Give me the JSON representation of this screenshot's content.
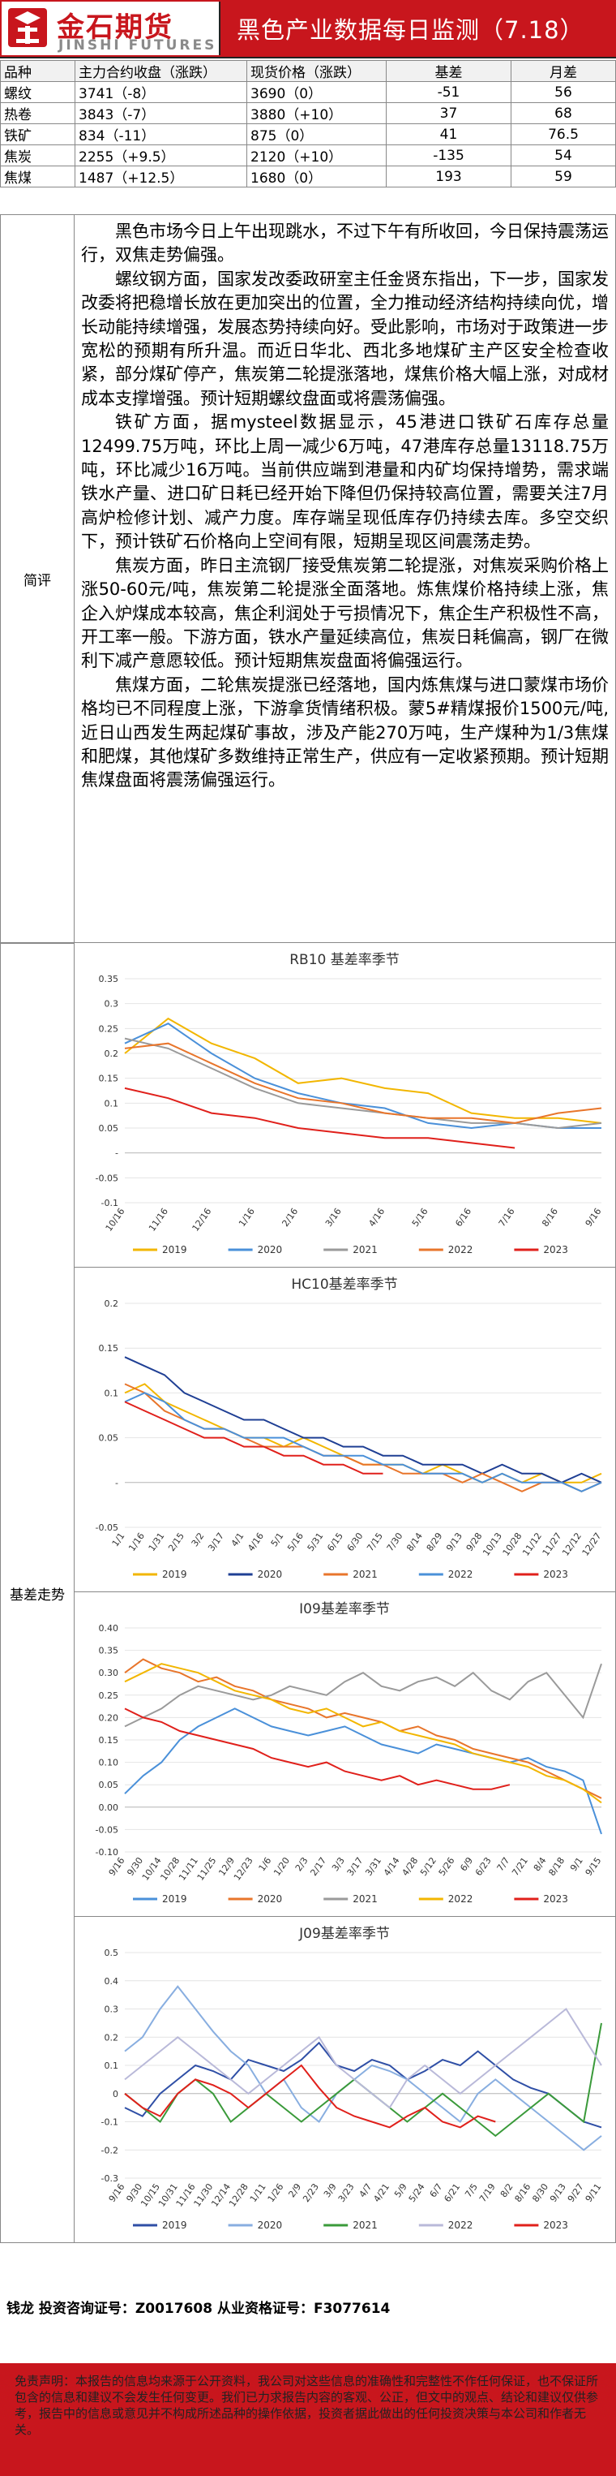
{
  "header": {
    "logo_cn": "金石期货",
    "logo_en": "JINSHI FUTURES",
    "title": "黑色产业数据每日监测（7.18）"
  },
  "table": {
    "headers": [
      "品种",
      "主力合约收盘（涨跌）",
      "现货价格（涨跌）",
      "基差",
      "月差"
    ],
    "rows": [
      [
        "螺纹",
        "3741（-8）",
        "3690（0）",
        "-51",
        "56"
      ],
      [
        "热卷",
        "3843（-7）",
        "3880（+10）",
        "37",
        "68"
      ],
      [
        "铁矿",
        "834（-11）",
        "875（0）",
        "41",
        "76.5"
      ],
      [
        "焦炭",
        "2255（+9.5）",
        "2120（+10）",
        "-135",
        "54"
      ],
      [
        "焦煤",
        "1487（+12.5）",
        "1680（0）",
        "193",
        "59"
      ]
    ]
  },
  "comment": {
    "label": "简评",
    "paragraphs": [
      "黑色市场今日上午出现跳水，不过下午有所收回，今日保持震荡运行，双焦走势偏强。",
      "螺纹钢方面，国家发改委政研室主任金贤东指出，下一步，国家发改委将把稳增长放在更加突出的位置，全力推动经济结构持续向优，增长动能持续增强，发展态势持续向好。受此影响，市场对于政策进一步宽松的预期有所升温。而近日华北、西北多地煤矿主产区安全检查收紧，部分煤矿停产，焦炭第二轮提涨落地，煤焦价格大幅上涨，对成材成本支撑增强。预计短期螺纹盘面或将震荡偏强。",
      "铁矿方面，据mysteel数据显示，45港进口铁矿石库存总量12499.75万吨，环比上周一减少6万吨，47港库存总量13118.75万吨，环比减少16万吨。当前供应端到港量和内矿均保持增势，需求端铁水产量、进口矿日耗已经开始下降但仍保持较高位置，需要关注7月高炉检修计划、减产力度。库存端呈现低库存仍持续去库。多空交织下，预计铁矿石价格向上空间有限，短期呈现区间震荡走势。",
      "焦炭方面，昨日主流钢厂接受焦炭第二轮提涨，对焦炭采购价格上涨50-60元/吨，焦炭第二轮提涨全面落地。炼焦煤价格持续上涨，焦企入炉煤成本较高，焦企利润处于亏损情况下，焦企生产积极性不高，开工率一般。下游方面，铁水产量延续高位，焦炭日耗偏高，钢厂在微利下减产意愿较低。预计短期焦炭盘面将偏强运行。",
      "焦煤方面，二轮焦炭提涨已经落地，国内炼焦煤与进口蒙煤市场价格均已不同程度上涨，下游拿货情绪积极。蒙5#精煤报价1500元/吨,近日山西发生两起煤矿事故，涉及产能270万吨，生产煤种为1/3焦煤和肥煤，其他煤矿多数维持正常生产，供应有一定收紧预期。预计短期焦煤盘面将震荡偏强运行。"
    ]
  },
  "basis_label": "基差走势",
  "chart_data": [
    {
      "type": "line",
      "title": "RB10 基差率季节",
      "ylim": [
        -0.1,
        0.35
      ],
      "yticks": [
        0.35,
        0.3,
        0.25,
        0.2,
        0.15,
        0.1,
        0.05,
        0,
        -0.05,
        -0.1
      ],
      "ytick_labels": [
        "0.35",
        "0.3",
        "0.25",
        "0.2",
        "0.15",
        "0.1",
        "0.05",
        "-",
        "-0.05",
        "-0.1"
      ],
      "categories": [
        "10/16",
        "11/16",
        "12/16",
        "1/16",
        "2/16",
        "3/16",
        "4/16",
        "5/16",
        "6/16",
        "7/16",
        "8/16",
        "9/16"
      ],
      "series": [
        {
          "name": "2019",
          "color": "#f2b600",
          "values": [
            0.2,
            0.27,
            0.22,
            0.19,
            0.14,
            0.15,
            0.13,
            0.12,
            0.08,
            0.07,
            0.07,
            0.06
          ]
        },
        {
          "name": "2020",
          "color": "#4a90d9",
          "values": [
            0.22,
            0.26,
            0.2,
            0.15,
            0.12,
            0.1,
            0.09,
            0.06,
            0.05,
            0.06,
            0.05,
            0.05
          ]
        },
        {
          "name": "2021",
          "color": "#9a9a9a",
          "values": [
            0.23,
            0.21,
            0.17,
            0.13,
            0.1,
            0.09,
            0.08,
            0.07,
            0.06,
            0.06,
            0.05,
            0.06
          ]
        },
        {
          "name": "2022",
          "color": "#e8752b",
          "values": [
            0.21,
            0.22,
            0.18,
            0.14,
            0.11,
            0.1,
            0.08,
            0.07,
            0.07,
            0.06,
            0.08,
            0.09
          ]
        },
        {
          "name": "2023",
          "color": "#e0201b",
          "values": [
            0.13,
            0.11,
            0.08,
            0.07,
            0.05,
            0.04,
            0.03,
            0.03,
            0.02,
            0.01,
            null,
            null
          ]
        }
      ]
    },
    {
      "type": "line",
      "title": "HC10基差率季节",
      "ylim": [
        -0.05,
        0.2
      ],
      "yticks": [
        0.2,
        0.15,
        0.1,
        0.05,
        0,
        -0.05
      ],
      "ytick_labels": [
        "0.2",
        "0.15",
        "0.1",
        "0.05",
        "-",
        "-0.05"
      ],
      "categories": [
        "1/1",
        "1/16",
        "1/31",
        "2/15",
        "3/2",
        "3/17",
        "4/1",
        "4/16",
        "5/1",
        "5/16",
        "5/31",
        "6/15",
        "6/30",
        "7/15",
        "7/30",
        "8/14",
        "8/29",
        "9/13",
        "9/28",
        "10/13",
        "10/28",
        "11/12",
        "11/27",
        "12/12",
        "12/27"
      ],
      "series": [
        {
          "name": "2019",
          "color": "#f2b600",
          "values": [
            0.1,
            0.11,
            0.09,
            0.08,
            0.07,
            0.06,
            0.05,
            0.05,
            0.04,
            0.05,
            0.04,
            0.03,
            0.02,
            0.02,
            0.02,
            0.01,
            0.02,
            0.01,
            0.0,
            0.01,
            0.0,
            0.01,
            0.0,
            0.0,
            0.01
          ]
        },
        {
          "name": "2020",
          "color": "#1f3f94",
          "values": [
            0.14,
            0.13,
            0.12,
            0.1,
            0.09,
            0.08,
            0.07,
            0.07,
            0.06,
            0.05,
            0.05,
            0.04,
            0.04,
            0.03,
            0.03,
            0.02,
            0.02,
            0.02,
            0.01,
            0.02,
            0.01,
            0.01,
            0.0,
            0.01,
            0.0
          ]
        },
        {
          "name": "2021",
          "color": "#e8752b",
          "values": [
            0.11,
            0.1,
            0.08,
            0.07,
            0.06,
            0.06,
            0.05,
            0.04,
            0.04,
            0.04,
            0.03,
            0.03,
            0.02,
            0.02,
            0.01,
            0.01,
            0.01,
            0.0,
            0.01,
            0.0,
            -0.01,
            0.0,
            0.0,
            -0.01,
            0.0
          ]
        },
        {
          "name": "2022",
          "color": "#4a90d9",
          "values": [
            0.09,
            0.1,
            0.09,
            0.07,
            0.06,
            0.06,
            0.05,
            0.05,
            0.05,
            0.04,
            0.03,
            0.03,
            0.03,
            0.02,
            0.02,
            0.01,
            0.01,
            0.01,
            0.0,
            0.01,
            0.0,
            0.0,
            0.0,
            -0.01,
            0.0
          ]
        },
        {
          "name": "2023",
          "color": "#e0201b",
          "values": [
            0.09,
            0.08,
            0.07,
            0.06,
            0.05,
            0.05,
            0.04,
            0.04,
            0.03,
            0.03,
            0.02,
            0.02,
            0.01,
            0.01,
            null,
            null,
            null,
            null,
            null,
            null,
            null,
            null,
            null,
            null,
            null
          ]
        }
      ]
    },
    {
      "type": "line",
      "title": "I09基差率季节",
      "ylim": [
        -0.1,
        0.4
      ],
      "yticks": [
        0.4,
        0.35,
        0.3,
        0.25,
        0.2,
        0.15,
        0.1,
        0.05,
        0.0,
        -0.05,
        -0.1
      ],
      "ytick_labels": [
        "0.40",
        "0.35",
        "0.30",
        "0.25",
        "0.20",
        "0.15",
        "0.10",
        "0.05",
        "0.00",
        "-0.05",
        "-0.10"
      ],
      "categories": [
        "9/16",
        "9/30",
        "10/14",
        "10/28",
        "11/11",
        "11/25",
        "12/9",
        "12/23",
        "1/6",
        "1/20",
        "2/3",
        "2/17",
        "3/3",
        "3/17",
        "3/31",
        "4/14",
        "4/28",
        "5/12",
        "5/26",
        "6/9",
        "6/23",
        "7/7",
        "7/21",
        "8/4",
        "8/18",
        "9/1",
        "9/15"
      ],
      "series": [
        {
          "name": "2019",
          "color": "#4a90d9",
          "values": [
            0.03,
            0.07,
            0.1,
            0.15,
            0.18,
            0.2,
            0.22,
            0.2,
            0.18,
            0.17,
            0.16,
            0.17,
            0.18,
            0.16,
            0.14,
            0.13,
            0.12,
            0.14,
            0.13,
            0.12,
            0.11,
            0.1,
            0.11,
            0.09,
            0.08,
            0.06,
            -0.06
          ]
        },
        {
          "name": "2020",
          "color": "#e8752b",
          "values": [
            0.3,
            0.33,
            0.31,
            0.3,
            0.28,
            0.29,
            0.27,
            0.26,
            0.24,
            0.23,
            0.22,
            0.2,
            0.21,
            0.2,
            0.19,
            0.17,
            0.18,
            0.16,
            0.15,
            0.13,
            0.12,
            0.11,
            0.1,
            0.08,
            0.06,
            0.04,
            0.02
          ]
        },
        {
          "name": "2021",
          "color": "#9a9a9a",
          "values": [
            0.18,
            0.2,
            0.22,
            0.25,
            0.27,
            0.26,
            0.25,
            0.24,
            0.25,
            0.27,
            0.26,
            0.25,
            0.28,
            0.3,
            0.27,
            0.26,
            0.28,
            0.29,
            0.27,
            0.3,
            0.26,
            0.24,
            0.28,
            0.3,
            0.25,
            0.2,
            0.32
          ]
        },
        {
          "name": "2022",
          "color": "#f2b600",
          "values": [
            0.28,
            0.3,
            0.32,
            0.31,
            0.3,
            0.28,
            0.26,
            0.25,
            0.24,
            0.22,
            0.21,
            0.22,
            0.2,
            0.18,
            0.19,
            0.17,
            0.16,
            0.15,
            0.14,
            0.12,
            0.11,
            0.1,
            0.09,
            0.07,
            0.06,
            0.04,
            0.01
          ]
        },
        {
          "name": "2023",
          "color": "#e0201b",
          "values": [
            0.22,
            0.2,
            0.19,
            0.17,
            0.16,
            0.15,
            0.14,
            0.13,
            0.11,
            0.1,
            0.09,
            0.1,
            0.08,
            0.07,
            0.06,
            0.07,
            0.05,
            0.06,
            0.05,
            0.04,
            0.04,
            0.05,
            null,
            null,
            null,
            null,
            null
          ]
        }
      ]
    },
    {
      "type": "line",
      "title": "J09基差率季节",
      "ylim": [
        -0.3,
        0.5
      ],
      "yticks": [
        0.5,
        0.4,
        0.3,
        0.2,
        0.1,
        0,
        -0.1,
        -0.2,
        -0.3
      ],
      "ytick_labels": [
        "0.5",
        "0.4",
        "0.3",
        "0.2",
        "0.1",
        "0",
        "-0.1",
        "-0.2",
        "-0.3"
      ],
      "categories": [
        "9/16",
        "9/30",
        "10/15",
        "10/31",
        "11/16",
        "11/30",
        "12/14",
        "12/28",
        "1/11",
        "1/26",
        "2/9",
        "2/23",
        "3/9",
        "3/23",
        "4/7",
        "4/21",
        "5/9",
        "5/24",
        "6/7",
        "6/21",
        "7/5",
        "7/19",
        "8/2",
        "8/16",
        "8/30",
        "9/13",
        "9/27",
        "9/11"
      ],
      "series": [
        {
          "name": "2019",
          "color": "#2f4fa6",
          "values": [
            -0.05,
            -0.08,
            0.0,
            0.05,
            0.1,
            0.08,
            0.05,
            0.12,
            0.1,
            0.08,
            0.12,
            0.18,
            0.1,
            0.08,
            0.12,
            0.1,
            0.05,
            0.08,
            0.12,
            0.1,
            0.15,
            0.1,
            0.05,
            0.02,
            0.0,
            -0.05,
            -0.1,
            -0.12
          ]
        },
        {
          "name": "2020",
          "color": "#88aee0",
          "values": [
            0.15,
            0.2,
            0.3,
            0.38,
            0.3,
            0.22,
            0.15,
            0.1,
            0.0,
            0.05,
            -0.05,
            -0.1,
            0.0,
            0.05,
            0.1,
            0.08,
            0.05,
            0.0,
            -0.05,
            -0.1,
            0.0,
            0.05,
            0.0,
            -0.05,
            -0.1,
            -0.15,
            -0.2,
            -0.15
          ]
        },
        {
          "name": "2021",
          "color": "#3a9a3a",
          "values": [
            0.0,
            -0.05,
            -0.1,
            0.0,
            0.05,
            0.0,
            -0.1,
            -0.05,
            0.0,
            -0.05,
            -0.1,
            -0.05,
            0.0,
            0.05,
            0.0,
            -0.05,
            -0.1,
            -0.05,
            0.0,
            -0.05,
            -0.1,
            -0.15,
            -0.1,
            -0.05,
            0.0,
            -0.05,
            -0.1,
            0.25
          ]
        },
        {
          "name": "2022",
          "color": "#b9b9d9",
          "values": [
            0.05,
            0.1,
            0.15,
            0.2,
            0.15,
            0.1,
            0.05,
            0.0,
            0.05,
            0.1,
            0.15,
            0.2,
            0.1,
            0.05,
            0.0,
            -0.05,
            0.05,
            0.1,
            0.05,
            0.0,
            0.05,
            0.1,
            0.15,
            0.2,
            0.25,
            0.3,
            0.2,
            0.1
          ]
        },
        {
          "name": "2023",
          "color": "#e0201b",
          "values": [
            0.0,
            -0.05,
            -0.08,
            0.0,
            0.05,
            0.03,
            0.0,
            -0.05,
            0.0,
            0.05,
            0.1,
            0.02,
            -0.05,
            -0.08,
            -0.1,
            -0.12,
            -0.08,
            -0.05,
            -0.1,
            -0.12,
            -0.08,
            -0.1,
            null,
            null,
            null,
            null,
            null,
            null
          ]
        }
      ]
    }
  ],
  "contact": "钱龙 投资咨询证号：Z0017608 从业资格证号：F3077614",
  "disclaimer": "免责声明：本报告的信息均来源于公开资料，我公司对这些信息的准确性和完整性不作任何保证，也不保证所包含的信息和建议不会发生任何变更。我们已力求报告内容的客观、公正，但文中的观点、结论和建议仅供参考，报告中的信息或意见并不构成所述品种的操作依据，投资者据此做出的任何投资决策与本公司和作者无关。"
}
